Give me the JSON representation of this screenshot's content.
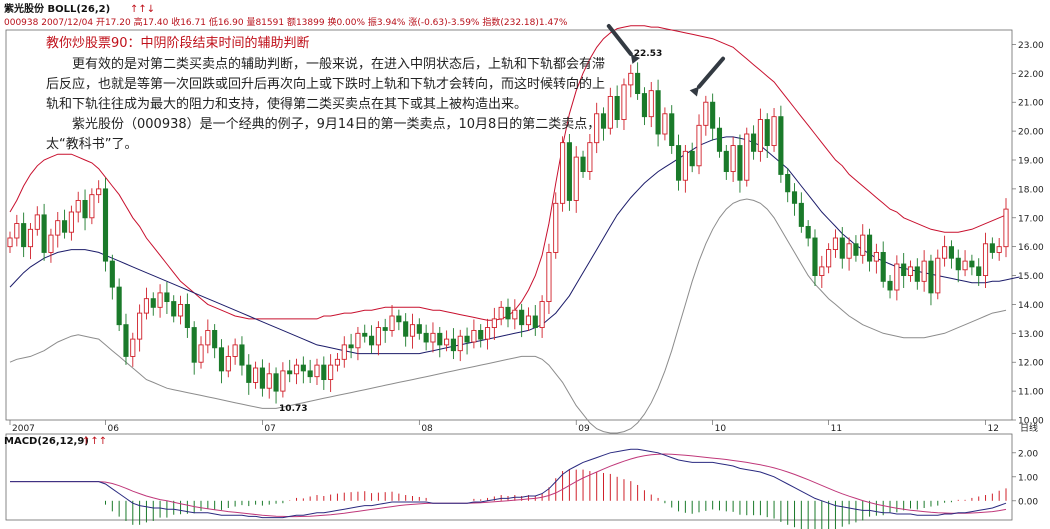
{
  "header": {
    "stock_indicator": "紫光股份 BOLL(26,2)",
    "arrows": "↑↑↓",
    "quote_line": "000938 2007/12/04 开17.20 高17.40 收16.71 低16.90 量81591 额13899 换0.00% 振3.94% 涨(-0.63)-3.59% 指数(232.18)1.47%"
  },
  "article": {
    "title": "教你炒股票90：中阴阶段结束时间的辅助判断",
    "paragraphs": [
      "更有效的是对第二类买卖点的辅助判断，一般来说，在进入中阴状态后，上轨和下轨都会有滞后反应，也就是等第一次回跌或回升后再次向上或下跌时上轨和下轨才会转向，而这时候转向的上轨和下轨往往成为最大的阻力和支持，使得第二类买卖点在其下或其上被构造出来。",
      "紫光股份（000938）是一个经典的例子，9月14日的第一类卖点，10月8日的第二类卖点，太“教科书”了。"
    ]
  },
  "macd": {
    "label": "MACD(26,12,9)",
    "arrows": "↑↑↑"
  },
  "colors": {
    "up": "#d0202a",
    "down": "#1a7a2a",
    "upper_band": "#c8102e",
    "mid_band": "#1c1c6a",
    "lower_band": "#8c8c8c",
    "signal": "#c0387a",
    "dif": "#2a2a80"
  },
  "chart_data": [
    {
      "type": "candlestick",
      "overlay": "BOLL(26,2)",
      "ylim": [
        10,
        23.5
      ],
      "yticks": [
        "23.00",
        "22.00",
        "21.00",
        "20.00",
        "19.00",
        "18.00",
        "17.00",
        "16.00",
        "15.00",
        "14.00",
        "13.00",
        "12.00",
        "11.00",
        "10.00"
      ],
      "xticks": [
        {
          "label": "2007",
          "index": 0
        },
        {
          "label": "06",
          "index": 14
        },
        {
          "label": "07",
          "index": 37
        },
        {
          "label": "08",
          "index": 60
        },
        {
          "label": "09",
          "index": 83
        },
        {
          "label": "10",
          "index": 103
        },
        {
          "label": "11",
          "index": 120
        },
        {
          "label": "12",
          "index": 143
        }
      ],
      "period_label": "日线",
      "annotations": [
        {
          "label": "22.53",
          "index": 91,
          "value": 22.53
        },
        {
          "label": "10.73",
          "index": 39,
          "value": 10.73
        }
      ],
      "sell_point_arrows": [
        {
          "index": 91,
          "value": 22.53
        },
        {
          "index": 101,
          "value": 21.4
        }
      ],
      "close": [
        16.3,
        16.8,
        16.0,
        16.6,
        17.1,
        15.8,
        16.4,
        16.9,
        16.5,
        17.2,
        17.6,
        17.0,
        17.8,
        18.0,
        15.5,
        14.6,
        13.3,
        12.2,
        12.8,
        13.7,
        14.2,
        13.9,
        14.4,
        14.1,
        13.6,
        14.0,
        13.2,
        12.0,
        12.6,
        13.1,
        12.5,
        11.7,
        12.2,
        12.6,
        11.9,
        11.3,
        11.8,
        11.1,
        11.6,
        11.0,
        11.7,
        11.6,
        11.9,
        11.7,
        11.5,
        11.9,
        11.4,
        11.9,
        12.1,
        12.6,
        12.5,
        13.0,
        12.9,
        12.6,
        13.2,
        13.1,
        13.6,
        13.4,
        12.9,
        13.3,
        13.0,
        12.7,
        13.0,
        12.6,
        12.8,
        12.4,
        12.9,
        12.7,
        13.1,
        12.8,
        13.2,
        13.5,
        13.9,
        13.5,
        13.8,
        13.3,
        13.6,
        13.2,
        14.1,
        15.8,
        17.5,
        19.6,
        17.6,
        19.1,
        18.6,
        19.6,
        20.6,
        20.1,
        21.2,
        20.4,
        21.6,
        22.0,
        21.3,
        20.5,
        21.4,
        19.9,
        20.6,
        19.5,
        18.3,
        19.3,
        18.8,
        20.2,
        21.0,
        20.1,
        19.3,
        18.6,
        19.5,
        18.3,
        19.9,
        19.3,
        20.4,
        19.5,
        20.5,
        18.5,
        17.9,
        17.5,
        16.7,
        16.3,
        15.0,
        15.3,
        15.9,
        16.3,
        15.6,
        16.1,
        15.7,
        16.4,
        15.5,
        15.8,
        14.8,
        14.5,
        15.4,
        15.0,
        15.3,
        14.8,
        15.5,
        14.4,
        15.6,
        16.0,
        15.6,
        15.2,
        15.5,
        15.3,
        15.0,
        16.1,
        15.8,
        16.0,
        17.3
      ],
      "upper_band": [
        17.2,
        17.6,
        18.1,
        18.5,
        18.8,
        19.0,
        19.1,
        19.2,
        19.2,
        19.2,
        19.1,
        19.0,
        18.9,
        18.7,
        18.4,
        18.1,
        17.8,
        17.4,
        17.0,
        16.7,
        16.3,
        16.0,
        15.7,
        15.4,
        15.1,
        14.8,
        14.6,
        14.4,
        14.2,
        14.0,
        13.9,
        13.8,
        13.7,
        13.6,
        13.55,
        13.5,
        13.5,
        13.5,
        13.5,
        13.5,
        13.5,
        13.5,
        13.5,
        13.5,
        13.5,
        13.5,
        13.6,
        13.6,
        13.65,
        13.7,
        13.7,
        13.75,
        13.8,
        13.8,
        13.85,
        13.9,
        13.9,
        13.9,
        13.9,
        13.9,
        13.9,
        13.85,
        13.8,
        13.8,
        13.75,
        13.7,
        13.65,
        13.6,
        13.55,
        13.5,
        13.45,
        13.45,
        13.5,
        13.6,
        13.8,
        14.1,
        14.5,
        15.0,
        15.7,
        16.8,
        18.2,
        19.5,
        20.6,
        21.4,
        22.0,
        22.5,
        22.9,
        23.2,
        23.4,
        23.55,
        23.6,
        23.65,
        23.65,
        23.65,
        23.6,
        23.6,
        23.55,
        23.5,
        23.45,
        23.4,
        23.35,
        23.3,
        23.25,
        23.2,
        23.1,
        23.0,
        22.9,
        22.7,
        22.5,
        22.3,
        22.1,
        21.9,
        21.7,
        21.4,
        21.1,
        20.8,
        20.5,
        20.2,
        19.9,
        19.6,
        19.3,
        19.0,
        18.8,
        18.5,
        18.3,
        18.1,
        17.9,
        17.7,
        17.5,
        17.3,
        17.2,
        17.0,
        16.9,
        16.8,
        16.7,
        16.6,
        16.55,
        16.5,
        16.5,
        16.5,
        16.55,
        16.6,
        16.7,
        16.8,
        16.9,
        17.0,
        17.1
      ],
      "mid_band": [
        14.6,
        14.85,
        15.1,
        15.3,
        15.45,
        15.6,
        15.7,
        15.8,
        15.85,
        15.9,
        15.9,
        15.9,
        15.85,
        15.8,
        15.7,
        15.6,
        15.5,
        15.4,
        15.3,
        15.2,
        15.1,
        15.0,
        14.9,
        14.8,
        14.7,
        14.6,
        14.5,
        14.4,
        14.3,
        14.2,
        14.1,
        14.0,
        13.9,
        13.8,
        13.7,
        13.6,
        13.5,
        13.4,
        13.3,
        13.2,
        13.1,
        13.0,
        12.9,
        12.8,
        12.7,
        12.6,
        12.55,
        12.5,
        12.45,
        12.4,
        12.35,
        12.3,
        12.3,
        12.3,
        12.3,
        12.3,
        12.3,
        12.3,
        12.3,
        12.3,
        12.3,
        12.35,
        12.4,
        12.45,
        12.5,
        12.55,
        12.6,
        12.65,
        12.7,
        12.75,
        12.8,
        12.85,
        12.9,
        12.95,
        13.0,
        13.05,
        13.1,
        13.2,
        13.3,
        13.5,
        13.7,
        14.0,
        14.3,
        14.7,
        15.1,
        15.5,
        15.9,
        16.3,
        16.7,
        17.1,
        17.4,
        17.7,
        17.95,
        18.2,
        18.4,
        18.6,
        18.75,
        18.9,
        19.05,
        19.2,
        19.35,
        19.5,
        19.6,
        19.7,
        19.75,
        19.8,
        19.8,
        19.75,
        19.7,
        19.6,
        19.5,
        19.3,
        19.1,
        18.9,
        18.7,
        18.4,
        18.1,
        17.8,
        17.5,
        17.2,
        16.95,
        16.7,
        16.45,
        16.25,
        16.05,
        15.9,
        15.75,
        15.6,
        15.5,
        15.4,
        15.3,
        15.25,
        15.2,
        15.15,
        15.1,
        15.05,
        15.0,
        14.95,
        14.9,
        14.85,
        14.8,
        14.75,
        14.75,
        14.75,
        14.8,
        14.8,
        14.85,
        14.9,
        14.95
      ],
      "lower_band": [
        12.0,
        12.1,
        12.15,
        12.2,
        12.3,
        12.4,
        12.55,
        12.7,
        12.8,
        12.9,
        12.95,
        12.9,
        12.85,
        12.8,
        12.6,
        12.4,
        12.2,
        12.0,
        11.8,
        11.6,
        11.4,
        11.3,
        11.2,
        11.1,
        11.05,
        11.0,
        10.95,
        10.9,
        10.85,
        10.8,
        10.75,
        10.7,
        10.65,
        10.6,
        10.55,
        10.5,
        10.45,
        10.4,
        10.4,
        10.4,
        10.45,
        10.5,
        10.55,
        10.6,
        10.65,
        10.7,
        10.75,
        10.8,
        10.85,
        10.9,
        10.95,
        11.0,
        11.05,
        11.1,
        11.15,
        11.2,
        11.25,
        11.3,
        11.35,
        11.4,
        11.45,
        11.5,
        11.55,
        11.6,
        11.65,
        11.7,
        11.75,
        11.8,
        11.85,
        11.9,
        11.95,
        12.0,
        12.05,
        12.1,
        12.15,
        12.2,
        12.2,
        12.2,
        12.1,
        11.9,
        11.6,
        11.3,
        10.9,
        10.5,
        10.2,
        9.9,
        9.7,
        9.6,
        9.55,
        9.55,
        9.6,
        9.7,
        9.9,
        10.2,
        10.6,
        11.1,
        11.7,
        12.4,
        13.2,
        14.0,
        14.8,
        15.5,
        16.1,
        16.6,
        17.0,
        17.3,
        17.5,
        17.6,
        17.65,
        17.6,
        17.5,
        17.3,
        17.0,
        16.6,
        16.2,
        15.8,
        15.4,
        15.0,
        14.7,
        14.45,
        14.2,
        14.0,
        13.8,
        13.6,
        13.45,
        13.3,
        13.2,
        13.1,
        13.0,
        12.95,
        12.9,
        12.85,
        12.85,
        12.85,
        12.85,
        12.9,
        12.95,
        13.0,
        13.1,
        13.2,
        13.3,
        13.4,
        13.5,
        13.6,
        13.7,
        13.75,
        13.8
      ]
    },
    {
      "type": "bar+line",
      "name": "MACD(26,12,9)",
      "ylim": [
        -0.8,
        2.2
      ],
      "yticks": [
        "2.00",
        "1.00",
        "0.00"
      ],
      "dif": [
        0.8,
        0.8,
        0.8,
        0.8,
        0.8,
        0.8,
        0.8,
        0.8,
        0.8,
        0.8,
        0.8,
        0.8,
        0.8,
        0.8,
        0.7,
        0.5,
        0.3,
        0.1,
        -0.1,
        -0.2,
        -0.25,
        -0.3,
        -0.3,
        -0.35,
        -0.35,
        -0.4,
        -0.45,
        -0.5,
        -0.5,
        -0.5,
        -0.55,
        -0.6,
        -0.6,
        -0.6,
        -0.6,
        -0.65,
        -0.65,
        -0.7,
        -0.7,
        -0.7,
        -0.7,
        -0.65,
        -0.6,
        -0.6,
        -0.55,
        -0.5,
        -0.5,
        -0.45,
        -0.4,
        -0.35,
        -0.3,
        -0.25,
        -0.2,
        -0.2,
        -0.15,
        -0.1,
        -0.05,
        -0.05,
        -0.05,
        -0.05,
        -0.05,
        -0.05,
        -0.1,
        -0.1,
        -0.1,
        -0.1,
        -0.1,
        -0.1,
        -0.05,
        -0.05,
        0.0,
        0.05,
        0.1,
        0.1,
        0.15,
        0.15,
        0.2,
        0.2,
        0.3,
        0.5,
        0.8,
        1.1,
        1.3,
        1.45,
        1.6,
        1.7,
        1.8,
        1.9,
        2.0,
        2.05,
        2.1,
        2.15,
        2.15,
        2.1,
        2.05,
        2.0,
        1.9,
        1.8,
        1.7,
        1.65,
        1.6,
        1.6,
        1.6,
        1.6,
        1.55,
        1.5,
        1.45,
        1.35,
        1.3,
        1.25,
        1.2,
        1.1,
        1.0,
        0.85,
        0.7,
        0.55,
        0.4,
        0.25,
        0.1,
        0.0,
        -0.1,
        -0.2,
        -0.25,
        -0.3,
        -0.35,
        -0.4,
        -0.4,
        -0.45,
        -0.5,
        -0.5,
        -0.55,
        -0.55,
        -0.55,
        -0.6,
        -0.6,
        -0.6,
        -0.6,
        -0.55,
        -0.55,
        -0.5,
        -0.5,
        -0.45,
        -0.4,
        -0.35,
        -0.3,
        -0.2,
        -0.1
      ],
      "dea": [
        0.8,
        0.8,
        0.8,
        0.8,
        0.8,
        0.8,
        0.8,
        0.8,
        0.8,
        0.8,
        0.8,
        0.8,
        0.8,
        0.8,
        0.78,
        0.72,
        0.63,
        0.52,
        0.4,
        0.3,
        0.2,
        0.12,
        0.05,
        0.0,
        -0.06,
        -0.12,
        -0.18,
        -0.24,
        -0.29,
        -0.33,
        -0.37,
        -0.41,
        -0.45,
        -0.48,
        -0.51,
        -0.54,
        -0.57,
        -0.6,
        -0.62,
        -0.64,
        -0.65,
        -0.66,
        -0.66,
        -0.65,
        -0.64,
        -0.62,
        -0.6,
        -0.58,
        -0.55,
        -0.52,
        -0.48,
        -0.44,
        -0.4,
        -0.36,
        -0.32,
        -0.28,
        -0.24,
        -0.2,
        -0.17,
        -0.15,
        -0.13,
        -0.11,
        -0.1,
        -0.1,
        -0.1,
        -0.1,
        -0.1,
        -0.1,
        -0.09,
        -0.08,
        -0.06,
        -0.04,
        -0.02,
        0.0,
        0.03,
        0.05,
        0.08,
        0.1,
        0.15,
        0.22,
        0.33,
        0.48,
        0.64,
        0.8,
        0.95,
        1.08,
        1.2,
        1.32,
        1.44,
        1.55,
        1.65,
        1.74,
        1.82,
        1.88,
        1.92,
        1.94,
        1.95,
        1.94,
        1.92,
        1.9,
        1.87,
        1.84,
        1.81,
        1.78,
        1.75,
        1.72,
        1.68,
        1.64,
        1.6,
        1.55,
        1.5,
        1.44,
        1.37,
        1.29,
        1.2,
        1.1,
        0.99,
        0.88,
        0.76,
        0.64,
        0.52,
        0.4,
        0.29,
        0.19,
        0.1,
        0.01,
        -0.07,
        -0.14,
        -0.2,
        -0.26,
        -0.31,
        -0.35,
        -0.39,
        -0.42,
        -0.45,
        -0.48,
        -0.5,
        -0.51,
        -0.52,
        -0.52,
        -0.52,
        -0.51,
        -0.49,
        -0.47,
        -0.45,
        -0.41,
        -0.36
      ]
    }
  ]
}
